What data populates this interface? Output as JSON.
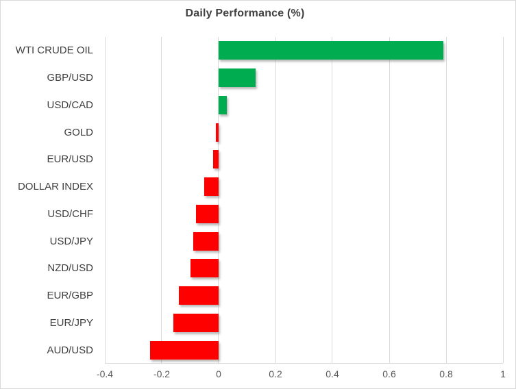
{
  "chart_data": {
    "type": "bar",
    "orientation": "horizontal",
    "title": "Daily Performance (%)",
    "categories": [
      "WTI CRUDE OIL",
      "GBP/USD",
      "USD/CAD",
      "GOLD",
      "EUR/USD",
      "DOLLAR INDEX",
      "USD/CHF",
      "USD/JPY",
      "NZD/USD",
      "EUR/GBP",
      "EUR/JPY",
      "AUD/USD"
    ],
    "values": [
      0.79,
      0.13,
      0.03,
      -0.01,
      -0.02,
      -0.05,
      -0.08,
      -0.09,
      -0.1,
      -0.14,
      -0.16,
      -0.24
    ],
    "xlabel": "",
    "ylabel": "",
    "xlim": [
      -0.4,
      1.0
    ],
    "x_ticks": [
      {
        "label": "-0.4",
        "value": -0.4
      },
      {
        "label": "-0.2",
        "value": -0.2
      },
      {
        "label": "0",
        "value": 0
      },
      {
        "label": "0.2",
        "value": 0.2
      },
      {
        "label": "0.4",
        "value": 0.4
      },
      {
        "label": "0.6",
        "value": 0.6
      },
      {
        "label": "0.8",
        "value": 0.8
      },
      {
        "label": "1",
        "value": 1
      }
    ],
    "grid": "vertical-only",
    "legend": "none",
    "colors": {
      "positive": "#00AC50",
      "negative": "#FF0000",
      "gridline": "#D9D9D9",
      "title_text": "#404040",
      "axis_text": "#595959"
    }
  }
}
